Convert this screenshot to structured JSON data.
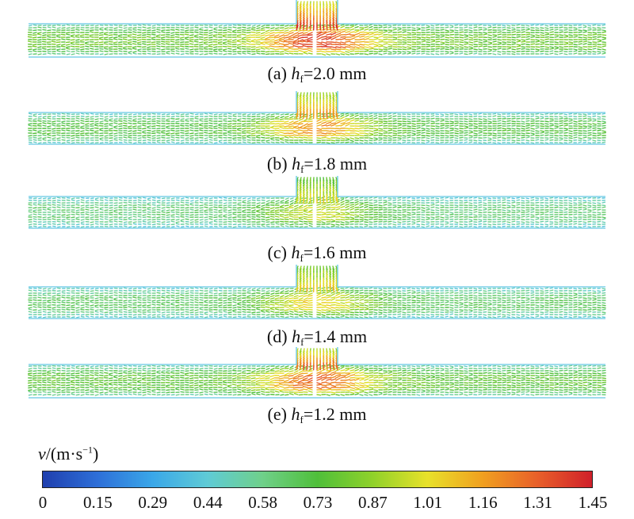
{
  "panels": [
    {
      "label": "(a) ",
      "var": "h",
      "sub": "f",
      "value": "=2.0 mm",
      "intensity": 1.0
    },
    {
      "label": "(b) ",
      "var": "h",
      "sub": "f",
      "value": "=1.8 mm",
      "intensity": 0.82
    },
    {
      "label": "(c) ",
      "var": "h",
      "sub": "f",
      "value": "=1.6 mm",
      "intensity": 0.62
    },
    {
      "label": "(d) ",
      "var": "h",
      "sub": "f",
      "value": "=1.4 mm",
      "intensity": 0.7
    },
    {
      "label": "(e) ",
      "var": "h",
      "sub": "f",
      "value": "=1.2 mm",
      "intensity": 0.92
    }
  ],
  "legend": {
    "var": "v",
    "unit_prefix": "/(m·s",
    "unit_exp": "−1",
    "unit_suffix": ")",
    "ticks": [
      "0",
      "0.15",
      "0.29",
      "0.44",
      "0.58",
      "0.73",
      "0.87",
      "1.01",
      "1.16",
      "1.31",
      "1.45"
    ],
    "colors": [
      "#1f3fae",
      "#2e6fd8",
      "#3aa7e8",
      "#5fcbd6",
      "#6fd08a",
      "#4fbf3a",
      "#8fd12a",
      "#e8e12a",
      "#f0a020",
      "#e8602a",
      "#d0202a"
    ]
  }
}
